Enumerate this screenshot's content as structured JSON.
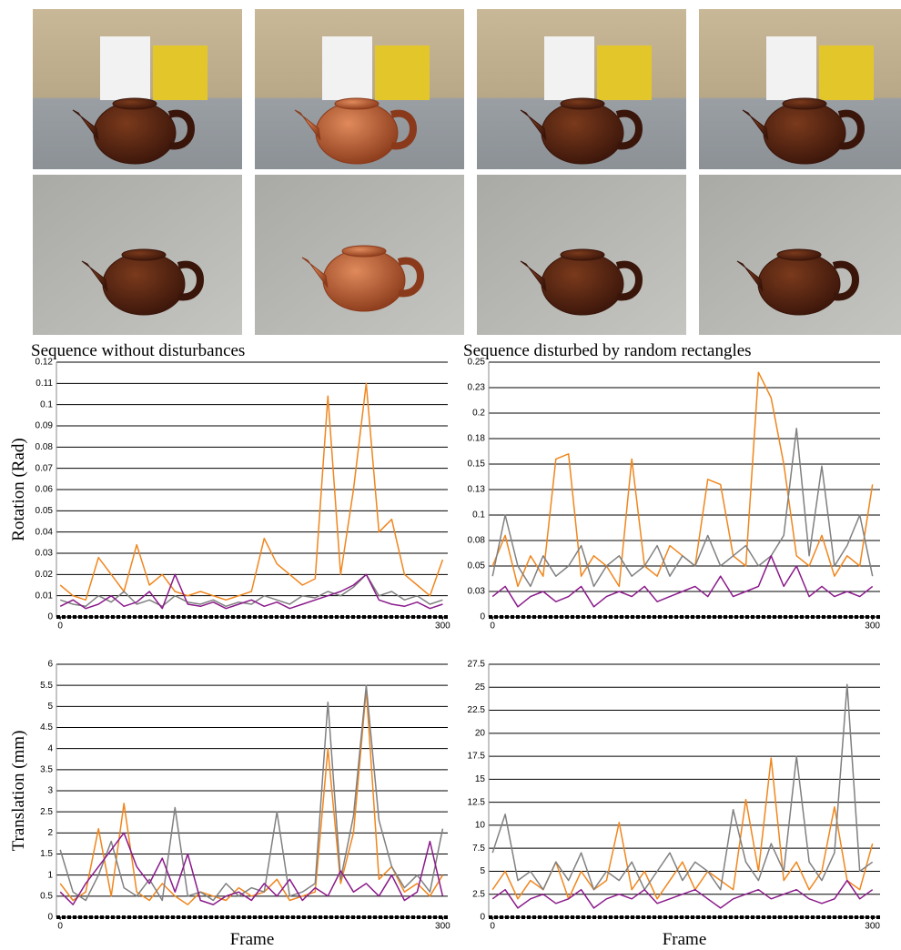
{
  "chart_data": [
    {
      "type": "line",
      "title": "Sequence without disturbances",
      "y_label": "Rotation (Rad)",
      "x": [
        0,
        10,
        20,
        30,
        40,
        50,
        60,
        70,
        80,
        90,
        100,
        110,
        120,
        130,
        140,
        150,
        160,
        170,
        180,
        190,
        200,
        210,
        220,
        230,
        240,
        250,
        260,
        270,
        280,
        290,
        300
      ],
      "xlim": [
        -3,
        304
      ],
      "xticks": [
        0,
        300
      ],
      "ylim": [
        0,
        0.12
      ],
      "yticks": [
        0,
        0.01,
        0.02,
        0.03,
        0.04,
        0.05,
        0.06,
        0.07,
        0.08,
        0.09,
        0.1,
        0.11,
        0.12
      ],
      "grid": true,
      "series": [
        {
          "color": "#f0861e",
          "values": [
            0.015,
            0.01,
            0.008,
            0.028,
            0.02,
            0.012,
            0.034,
            0.015,
            0.02,
            0.012,
            0.01,
            0.012,
            0.01,
            0.008,
            0.01,
            0.012,
            0.037,
            0.025,
            0.02,
            0.015,
            0.018,
            0.104,
            0.02,
            0.06,
            0.11,
            0.04,
            0.046,
            0.02,
            0.015,
            0.01,
            0.027
          ]
        },
        {
          "color": "#808080",
          "values": [
            0.008,
            0.006,
            0.005,
            0.01,
            0.007,
            0.012,
            0.006,
            0.008,
            0.005,
            0.01,
            0.007,
            0.006,
            0.008,
            0.005,
            0.007,
            0.006,
            0.01,
            0.008,
            0.006,
            0.01,
            0.009,
            0.012,
            0.01,
            0.014,
            0.02,
            0.01,
            0.012,
            0.008,
            0.01,
            0.006,
            0.008
          ]
        },
        {
          "color": "#8b1a8b",
          "values": [
            0.005,
            0.008,
            0.004,
            0.006,
            0.01,
            0.005,
            0.007,
            0.012,
            0.004,
            0.02,
            0.006,
            0.005,
            0.007,
            0.004,
            0.006,
            0.008,
            0.005,
            0.007,
            0.004,
            0.006,
            0.008,
            0.01,
            0.012,
            0.015,
            0.02,
            0.008,
            0.006,
            0.005,
            0.007,
            0.004,
            0.006
          ]
        }
      ]
    },
    {
      "type": "line",
      "title": "Sequence disturbed by random rectangles",
      "x": [
        0,
        10,
        20,
        30,
        40,
        50,
        60,
        70,
        80,
        90,
        100,
        110,
        120,
        130,
        140,
        150,
        160,
        170,
        180,
        190,
        200,
        210,
        220,
        230,
        240,
        250,
        260,
        270,
        280,
        290,
        300
      ],
      "xlim": [
        -3,
        306
      ],
      "xticks": [
        0,
        300
      ],
      "ylim": [
        0,
        0.25
      ],
      "yticks": [
        0,
        {
          "value": 0.025,
          "label": "0.03"
        },
        0.05,
        {
          "value": 0.075,
          "label": "0.08"
        },
        0.1,
        {
          "value": 0.125,
          "label": "0.13"
        },
        0.15,
        {
          "value": 0.175,
          "label": "0.18"
        },
        0.2,
        {
          "value": 0.225,
          "label": "0.23"
        },
        0.25
      ],
      "grid": true,
      "series": [
        {
          "color": "#f0861e",
          "values": [
            0.05,
            0.08,
            0.03,
            0.06,
            0.04,
            0.155,
            0.16,
            0.04,
            0.06,
            0.05,
            0.03,
            0.155,
            0.05,
            0.04,
            0.07,
            0.06,
            0.05,
            0.135,
            0.13,
            0.06,
            0.05,
            0.24,
            0.215,
            0.15,
            0.06,
            0.05,
            0.08,
            0.04,
            0.06,
            0.05,
            0.13
          ]
        },
        {
          "color": "#808080",
          "values": [
            0.04,
            0.1,
            0.05,
            0.03,
            0.06,
            0.04,
            0.05,
            0.07,
            0.03,
            0.05,
            0.06,
            0.04,
            0.05,
            0.07,
            0.04,
            0.06,
            0.05,
            0.08,
            0.05,
            0.06,
            0.07,
            0.05,
            0.06,
            0.08,
            0.185,
            0.06,
            0.148,
            0.05,
            0.07,
            0.1,
            0.04
          ]
        },
        {
          "color": "#8b1a8b",
          "values": [
            0.02,
            0.03,
            0.01,
            0.02,
            0.025,
            0.015,
            0.02,
            0.03,
            0.01,
            0.02,
            0.025,
            0.02,
            0.03,
            0.015,
            0.02,
            0.025,
            0.03,
            0.02,
            0.04,
            0.02,
            0.025,
            0.03,
            0.06,
            0.03,
            0.05,
            0.02,
            0.03,
            0.02,
            0.025,
            0.02,
            0.03
          ]
        }
      ]
    },
    {
      "type": "line",
      "y_label": "Translation (mm)",
      "x_label": "Frame",
      "x": [
        0,
        10,
        20,
        30,
        40,
        50,
        60,
        70,
        80,
        90,
        100,
        110,
        120,
        130,
        140,
        150,
        160,
        170,
        180,
        190,
        200,
        210,
        220,
        230,
        240,
        250,
        260,
        270,
        280,
        290,
        300
      ],
      "xlim": [
        -3,
        304
      ],
      "xticks": [
        0,
        300
      ],
      "ylim": [
        0,
        6
      ],
      "yticks": [
        0,
        0.5,
        1,
        1.5,
        2,
        2.5,
        3,
        3.5,
        4,
        4.5,
        5,
        5.5,
        6
      ],
      "grid": true,
      "series": [
        {
          "color": "#f0861e",
          "values": [
            0.8,
            0.4,
            0.6,
            2.1,
            0.5,
            2.7,
            0.6,
            0.4,
            0.8,
            0.5,
            0.3,
            0.6,
            0.5,
            0.4,
            0.7,
            0.5,
            0.6,
            0.9,
            0.4,
            0.5,
            0.6,
            4.0,
            0.8,
            2.0,
            5.4,
            0.9,
            1.2,
            0.6,
            0.8,
            0.5,
            1.0
          ]
        },
        {
          "color": "#808080",
          "values": [
            1.6,
            0.6,
            0.4,
            1.0,
            1.8,
            0.7,
            0.5,
            0.9,
            0.4,
            2.6,
            0.5,
            0.6,
            0.4,
            0.8,
            0.5,
            0.7,
            0.6,
            2.5,
            0.5,
            0.6,
            0.8,
            5.1,
            0.9,
            2.4,
            5.5,
            2.3,
            1.2,
            0.7,
            1.0,
            0.6,
            2.1
          ]
        },
        {
          "color": "#8b1a8b",
          "values": [
            0.6,
            0.3,
            0.8,
            1.2,
            1.6,
            2.0,
            1.2,
            0.8,
            1.4,
            0.6,
            1.5,
            0.4,
            0.3,
            0.5,
            0.6,
            0.4,
            0.8,
            0.5,
            0.9,
            0.4,
            0.7,
            0.5,
            1.1,
            0.6,
            0.8,
            0.5,
            1.0,
            0.4,
            0.6,
            1.8,
            0.5
          ]
        }
      ]
    },
    {
      "type": "line",
      "x_label": "Frame",
      "x": [
        0,
        10,
        20,
        30,
        40,
        50,
        60,
        70,
        80,
        90,
        100,
        110,
        120,
        130,
        140,
        150,
        160,
        170,
        180,
        190,
        200,
        210,
        220,
        230,
        240,
        250,
        260,
        270,
        280,
        290,
        300
      ],
      "xlim": [
        -3,
        306
      ],
      "xticks": [
        0,
        300
      ],
      "ylim": [
        0,
        27.5
      ],
      "yticks": [
        0,
        2.5,
        5,
        7.5,
        10,
        12.5,
        15,
        17.5,
        20,
        22.5,
        25,
        27.5
      ],
      "grid": true,
      "series": [
        {
          "color": "#f0861e",
          "values": [
            3,
            5,
            2,
            4,
            3,
            6,
            2,
            5,
            3,
            4,
            10.3,
            3,
            5,
            2,
            4,
            6,
            3,
            5,
            4,
            3,
            12.8,
            5,
            17.3,
            4,
            6,
            3,
            5,
            12,
            4,
            3,
            8
          ]
        },
        {
          "color": "#808080",
          "values": [
            7,
            11.2,
            4,
            5,
            3,
            6,
            4,
            7,
            3,
            5,
            4,
            6,
            3,
            5,
            7,
            4,
            6,
            5,
            3,
            11.7,
            6,
            4,
            8,
            5,
            17.5,
            6,
            4,
            7,
            25.3,
            5,
            6
          ]
        },
        {
          "color": "#8b1a8b",
          "values": [
            2,
            3,
            1,
            2,
            2.5,
            1.5,
            2,
            3,
            1,
            2,
            2.5,
            2,
            3,
            1.5,
            2,
            2.5,
            3,
            2,
            1,
            2,
            2.5,
            3,
            2,
            2.5,
            3,
            2,
            1.5,
            2,
            4,
            2,
            3
          ]
        }
      ]
    }
  ]
}
